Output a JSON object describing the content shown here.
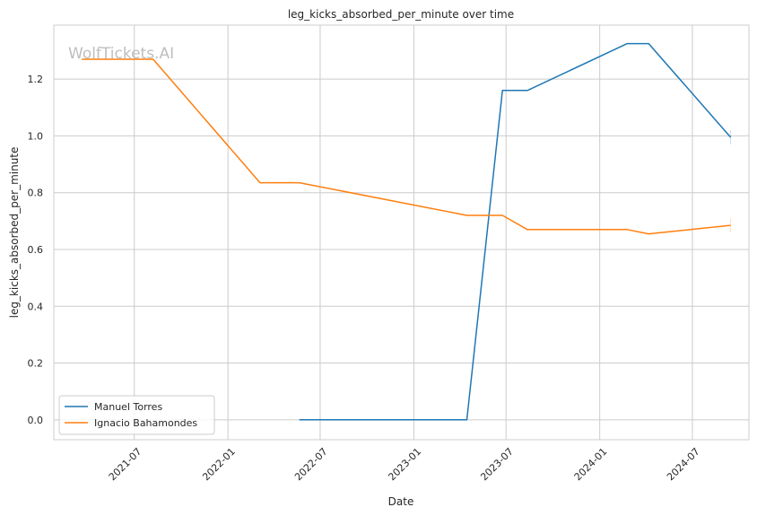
{
  "watermark": "WolfTickets.AI",
  "chart_data": {
    "type": "line",
    "title": "leg_kicks_absorbed_per_minute over time",
    "xlabel": "Date",
    "ylabel": "leg_kicks_absorbed_per_minute",
    "xlim": [
      "2021-01-24",
      "2024-10-20"
    ],
    "ylim": [
      -0.07,
      1.39
    ],
    "grid": true,
    "legend_position": "lower-left",
    "x_ticks": [
      {
        "date": "2021-07-01",
        "label": "2021-07"
      },
      {
        "date": "2022-01-01",
        "label": "2022-01"
      },
      {
        "date": "2022-07-01",
        "label": "2022-07"
      },
      {
        "date": "2023-01-01",
        "label": "2023-01"
      },
      {
        "date": "2023-07-01",
        "label": "2023-07"
      },
      {
        "date": "2024-01-01",
        "label": "2024-01"
      },
      {
        "date": "2024-07-01",
        "label": "2024-07"
      }
    ],
    "y_ticks": [
      {
        "value": 0.0,
        "label": "0.0"
      },
      {
        "value": 0.2,
        "label": "0.2"
      },
      {
        "value": 0.4,
        "label": "0.4"
      },
      {
        "value": 0.6,
        "label": "0.6"
      },
      {
        "value": 0.8,
        "label": "0.8"
      },
      {
        "value": 1.0,
        "label": "1.0"
      },
      {
        "value": 1.2,
        "label": "1.2"
      }
    ],
    "series": [
      {
        "name": "Manuel Torres",
        "color": "#1f77b4",
        "points": [
          {
            "x": "2022-05-21",
            "y": 0.0
          },
          {
            "x": "2023-04-15",
            "y": 0.0
          },
          {
            "x": "2023-06-24",
            "y": 1.16
          },
          {
            "x": "2023-08-12",
            "y": 1.16
          },
          {
            "x": "2024-02-24",
            "y": 1.325
          },
          {
            "x": "2024-04-06",
            "y": 1.325
          },
          {
            "x": "2024-09-14",
            "y": 0.995
          }
        ]
      },
      {
        "name": "Ignacio Bahamondes",
        "color": "#ff7f0e",
        "points": [
          {
            "x": "2021-03-20",
            "y": 1.27
          },
          {
            "x": "2021-08-07",
            "y": 1.27
          },
          {
            "x": "2022-03-05",
            "y": 0.835
          },
          {
            "x": "2022-05-21",
            "y": 0.835
          },
          {
            "x": "2023-04-15",
            "y": 0.72
          },
          {
            "x": "2023-06-24",
            "y": 0.72
          },
          {
            "x": "2023-08-12",
            "y": 0.67
          },
          {
            "x": "2024-02-24",
            "y": 0.67
          },
          {
            "x": "2024-04-06",
            "y": 0.655
          },
          {
            "x": "2024-09-14",
            "y": 0.685
          }
        ]
      }
    ]
  }
}
